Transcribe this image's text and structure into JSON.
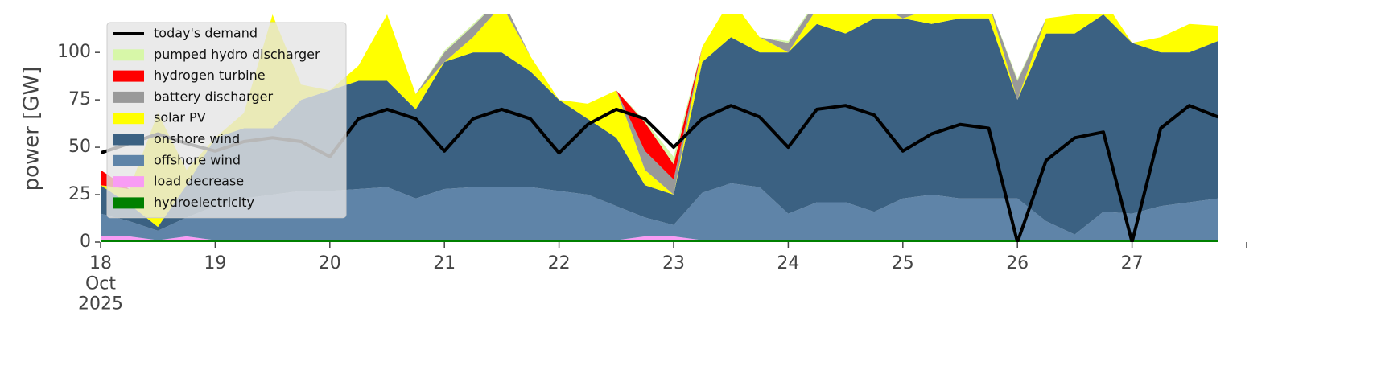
{
  "chart_data": {
    "type": "stacked_area",
    "ylabel": "power [GW]",
    "x": [
      18,
      18.25,
      18.5,
      18.75,
      19,
      19.25,
      19.5,
      19.75,
      20,
      20.25,
      20.5,
      20.75,
      21,
      21.25,
      21.5,
      21.75,
      22,
      22.25,
      22.5,
      22.75,
      23,
      23.25,
      23.5,
      23.75,
      24,
      24.25,
      24.5,
      24.75,
      25,
      25.25,
      25.5,
      25.75,
      26,
      26.25,
      26.5,
      26.75,
      27,
      27.25,
      27.5,
      27.75
    ],
    "xlim": [
      18,
      28
    ],
    "xticks": [
      {
        "value": 18,
        "label": "18\nOct\n2025"
      },
      19,
      20,
      21,
      22,
      23,
      24,
      25,
      26,
      27
    ],
    "ylim": [
      0,
      120
    ],
    "yticks": [
      0,
      25,
      50,
      75,
      100
    ],
    "series": [
      {
        "name": "hydroelectricity",
        "color": "#008000",
        "values": [
          1,
          1,
          1,
          1,
          1,
          1,
          1,
          1,
          1,
          1,
          1,
          1,
          1,
          1,
          1,
          1,
          1,
          1,
          1,
          1,
          1,
          1,
          1,
          1,
          1,
          1,
          1,
          1,
          1,
          1,
          1,
          1,
          1,
          1,
          1,
          1,
          1,
          1,
          1,
          1
        ]
      },
      {
        "name": "load decrease",
        "color": "#f89cf4",
        "values": [
          2,
          2,
          0,
          2,
          0,
          0,
          0,
          0,
          0,
          0,
          0,
          0,
          0,
          0,
          0,
          0,
          0,
          0,
          0,
          2,
          2,
          0,
          0,
          0,
          0,
          0,
          0,
          0,
          0,
          0,
          0,
          0,
          0,
          0,
          0,
          0,
          0,
          0,
          0,
          0
        ]
      },
      {
        "name": "offshore wind",
        "color": "#5f84a8",
        "values": [
          12,
          8,
          5,
          10,
          18,
          22,
          24,
          26,
          26,
          27,
          28,
          22,
          27,
          28,
          28,
          28,
          26,
          24,
          18,
          10,
          6,
          25,
          30,
          28,
          14,
          20,
          20,
          15,
          22,
          24,
          22,
          22,
          22,
          10,
          3,
          15,
          14,
          18,
          20,
          22
        ]
      },
      {
        "name": "onshore wind",
        "color": "#3b6182",
        "values": [
          15,
          9,
          2,
          17,
          36,
          37,
          35,
          48,
          53,
          57,
          56,
          47,
          67,
          71,
          71,
          61,
          48,
          40,
          36,
          17,
          16,
          69,
          77,
          71,
          85,
          94,
          89,
          102,
          95,
          90,
          95,
          95,
          52,
          99,
          106,
          104,
          90,
          81,
          79,
          83
        ]
      },
      {
        "name": "solar PV",
        "color": "#ffff00",
        "values": [
          0,
          8,
          60,
          8,
          0,
          8,
          60,
          8,
          0,
          8,
          35,
          8,
          0,
          8,
          25,
          8,
          0,
          8,
          25,
          8,
          0,
          8,
          20,
          8,
          0,
          8,
          10,
          8,
          0,
          8,
          5,
          8,
          0,
          8,
          10,
          8,
          0,
          8,
          15,
          8
        ]
      },
      {
        "name": "battery discharger",
        "color": "#999999",
        "values": [
          0,
          0,
          0,
          0,
          0,
          0,
          0,
          0,
          0,
          0,
          0,
          0,
          5,
          6,
          4,
          0,
          0,
          0,
          0,
          10,
          8,
          0,
          0,
          0,
          5,
          4,
          0,
          0,
          5,
          4,
          0,
          0,
          10,
          0,
          0,
          0,
          0,
          0,
          0,
          0
        ]
      },
      {
        "name": "hydrogen turbine",
        "color": "#ff0000",
        "values": [
          8,
          0,
          0,
          0,
          0,
          0,
          0,
          0,
          0,
          0,
          0,
          0,
          0,
          0,
          0,
          0,
          0,
          0,
          0,
          15,
          8,
          0,
          0,
          0,
          0,
          0,
          0,
          0,
          0,
          0,
          0,
          0,
          0,
          0,
          0,
          0,
          0,
          0,
          0,
          0
        ]
      },
      {
        "name": "pumped hydro discharger",
        "color": "#d7f7a8",
        "values": [
          0,
          0,
          0,
          0,
          0,
          0,
          0,
          0,
          0,
          0,
          0,
          0,
          1,
          1,
          0,
          0,
          0,
          0,
          0,
          1,
          4,
          0,
          0,
          0,
          1,
          1,
          0,
          0,
          0,
          0,
          0,
          0,
          1,
          0,
          0,
          0,
          0,
          0,
          0,
          0
        ]
      }
    ],
    "line": {
      "name": "today's demand",
      "color": "#000000",
      "values": [
        47,
        52,
        57,
        52,
        48,
        53,
        55,
        53,
        45,
        65,
        70,
        65,
        48,
        65,
        70,
        65,
        47,
        62,
        70,
        65,
        50,
        65,
        72,
        66,
        50,
        70,
        72,
        67,
        48,
        57,
        62,
        60,
        0,
        43,
        55,
        58,
        0,
        60,
        72,
        66
      ]
    }
  }
}
